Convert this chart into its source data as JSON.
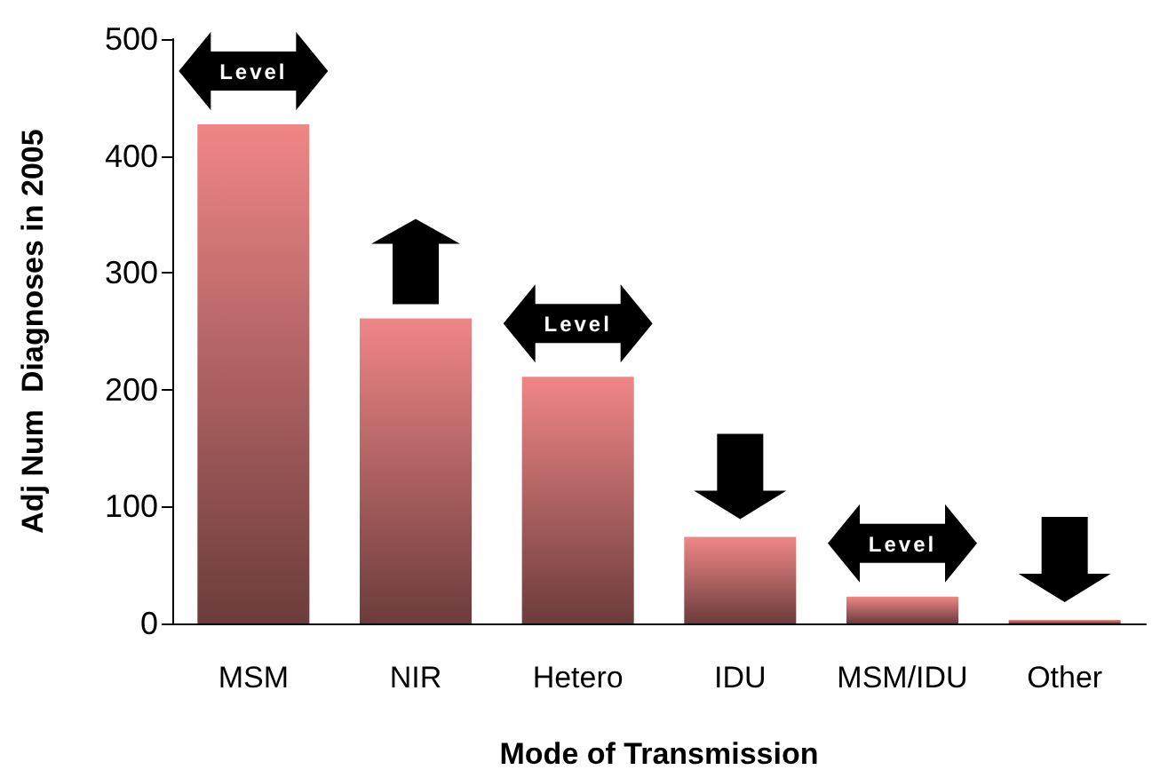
{
  "chart_data": {
    "type": "bar",
    "xlabel": "Mode of Transmission",
    "ylabel": "Adj Num  Diagnoses in 2005",
    "categories": [
      "MSM",
      "NIR",
      "Hetero",
      "IDU",
      "MSM/IDU",
      "Other"
    ],
    "values": [
      427,
      261,
      211,
      74,
      23,
      3
    ],
    "color": "#f08686",
    "ylim": [
      0,
      500
    ],
    "yticks": [
      0,
      100,
      200,
      300,
      400,
      500
    ],
    "grid": false,
    "annotations": [
      {
        "text": "Level",
        "x": "MSM",
        "y": 427
      },
      {
        "text": "Level",
        "x": "Hetero",
        "y": 211
      },
      {
        "text": "Level",
        "x": "MSM/IDU",
        "y": 23
      }
    ]
  }
}
